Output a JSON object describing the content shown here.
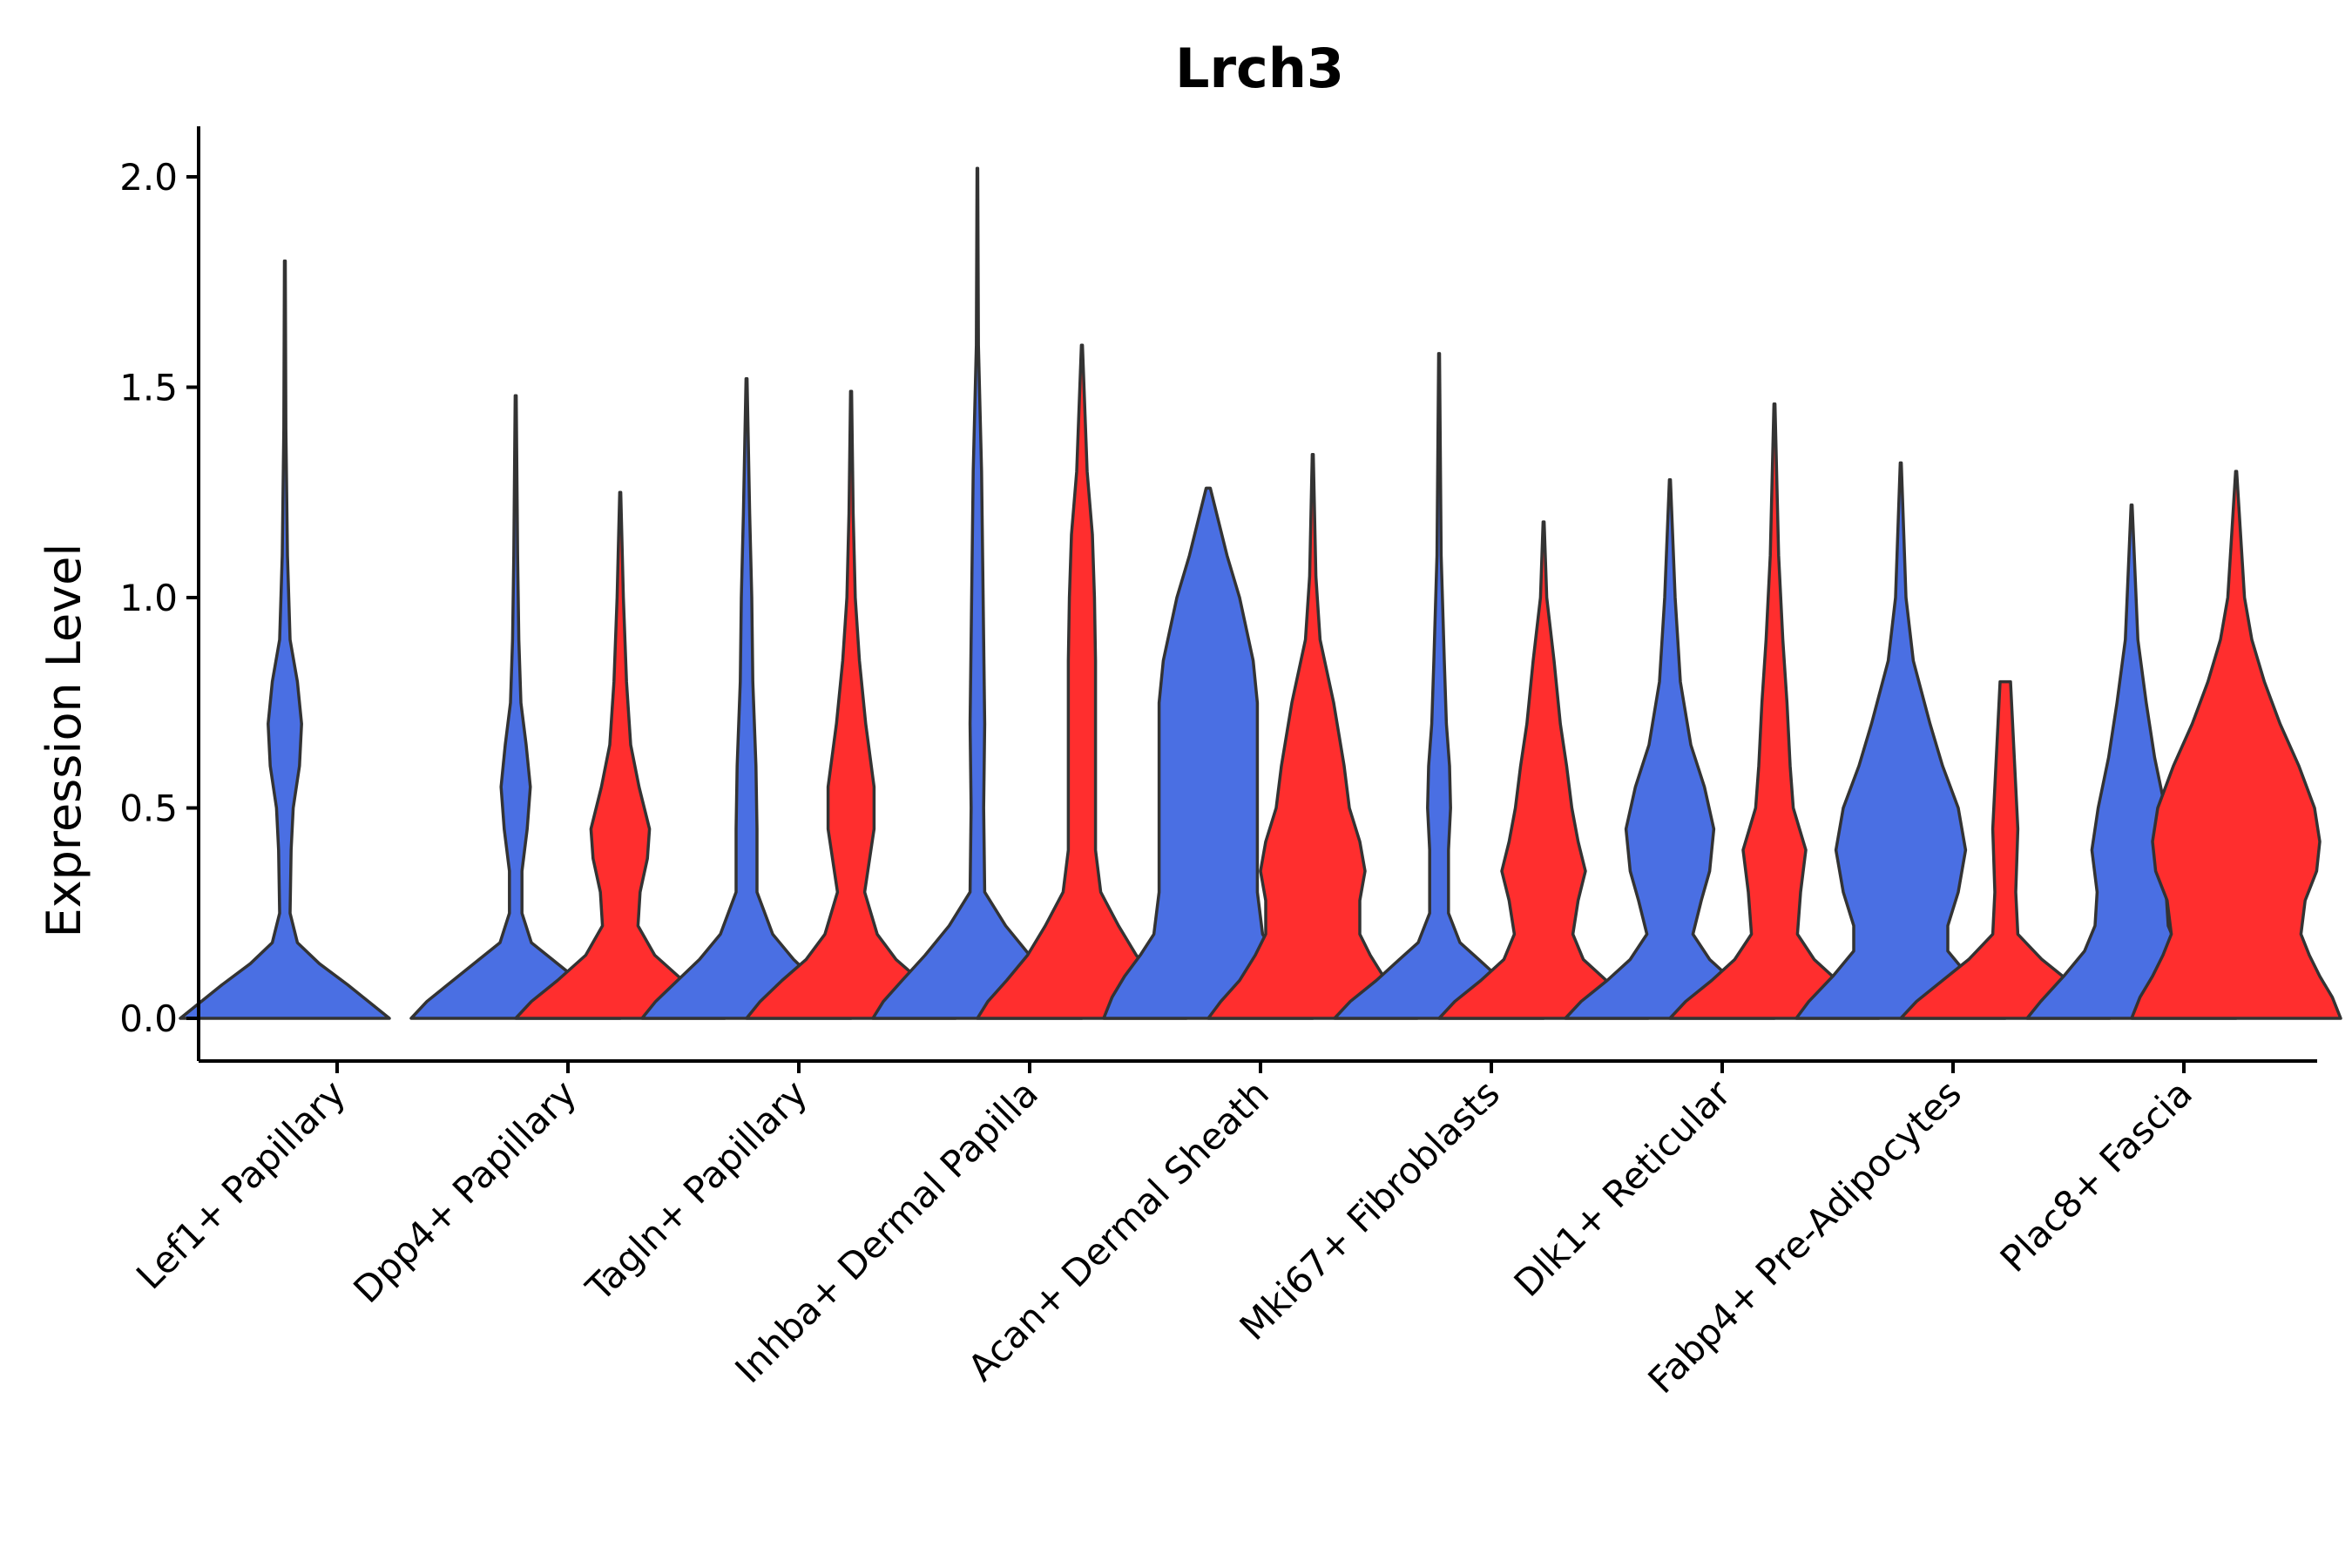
{
  "chart_data": {
    "type": "violin",
    "title": "Lrch3",
    "xlabel": "",
    "ylabel": "Expression Level",
    "ylim": [
      -0.1,
      2.12
    ],
    "yticks": [
      "0.0",
      "0.5",
      "1.0",
      "1.5",
      "2.0"
    ],
    "ytick_values": [
      0.0,
      0.5,
      1.0,
      1.5,
      2.0
    ],
    "grid": false,
    "legend": "none",
    "series_colors": {
      "group_a": "#4a6fe3",
      "group_b": "#ff2e2e"
    },
    "categories": [
      "Lef1+ Papillary",
      "Dpp4+ Papillary",
      "Tagln+ Papillary",
      "Inhba+ Dermal Papilla",
      "Acan+ Dermal Sheath",
      "Mki67+ Fibroblasts",
      "Dlk1+ Reticular",
      "Fabp4+ Pre-Adipocytes",
      "Plac8+ Fascia"
    ],
    "violins": [
      {
        "category": 0,
        "series": "group_a",
        "max": 1.8,
        "profile": [
          [
            0.0,
            1.0
          ],
          [
            0.03,
            0.85
          ],
          [
            0.08,
            0.6
          ],
          [
            0.13,
            0.33
          ],
          [
            0.18,
            0.12
          ],
          [
            0.25,
            0.05
          ],
          [
            0.4,
            0.06
          ],
          [
            0.5,
            0.08
          ],
          [
            0.6,
            0.14
          ],
          [
            0.7,
            0.16
          ],
          [
            0.8,
            0.12
          ],
          [
            0.9,
            0.05
          ],
          [
            1.1,
            0.025
          ],
          [
            1.4,
            0.01
          ],
          [
            1.8,
            0.004
          ]
        ]
      },
      {
        "category": 1,
        "series": "group_a",
        "max": 1.48,
        "profile": [
          [
            0.0,
            1.0
          ],
          [
            0.04,
            0.85
          ],
          [
            0.09,
            0.6
          ],
          [
            0.14,
            0.35
          ],
          [
            0.18,
            0.15
          ],
          [
            0.25,
            0.06
          ],
          [
            0.35,
            0.06
          ],
          [
            0.45,
            0.11
          ],
          [
            0.55,
            0.14
          ],
          [
            0.65,
            0.1
          ],
          [
            0.75,
            0.05
          ],
          [
            0.9,
            0.03
          ],
          [
            1.1,
            0.018
          ],
          [
            1.48,
            0.005
          ]
        ]
      },
      {
        "category": 1,
        "series": "group_b",
        "max": 1.25,
        "profile": [
          [
            0.0,
            1.0
          ],
          [
            0.04,
            0.85
          ],
          [
            0.09,
            0.6
          ],
          [
            0.15,
            0.33
          ],
          [
            0.22,
            0.17
          ],
          [
            0.3,
            0.19
          ],
          [
            0.38,
            0.26
          ],
          [
            0.45,
            0.28
          ],
          [
            0.55,
            0.18
          ],
          [
            0.65,
            0.1
          ],
          [
            0.8,
            0.06
          ],
          [
            1.0,
            0.03
          ],
          [
            1.25,
            0.005
          ]
        ]
      },
      {
        "category": 2,
        "series": "group_a",
        "max": 1.52,
        "profile": [
          [
            0.0,
            1.0
          ],
          [
            0.04,
            0.87
          ],
          [
            0.09,
            0.66
          ],
          [
            0.14,
            0.45
          ],
          [
            0.2,
            0.25
          ],
          [
            0.3,
            0.1
          ],
          [
            0.45,
            0.1
          ],
          [
            0.6,
            0.09
          ],
          [
            0.8,
            0.06
          ],
          [
            1.0,
            0.05
          ],
          [
            1.2,
            0.03
          ],
          [
            1.52,
            0.005
          ]
        ]
      },
      {
        "category": 2,
        "series": "group_b",
        "max": 1.49,
        "profile": [
          [
            0.0,
            1.0
          ],
          [
            0.04,
            0.87
          ],
          [
            0.09,
            0.66
          ],
          [
            0.14,
            0.43
          ],
          [
            0.2,
            0.25
          ],
          [
            0.3,
            0.13
          ],
          [
            0.45,
            0.22
          ],
          [
            0.55,
            0.22
          ],
          [
            0.7,
            0.14
          ],
          [
            0.85,
            0.08
          ],
          [
            1.0,
            0.04
          ],
          [
            1.2,
            0.02
          ],
          [
            1.49,
            0.005
          ]
        ]
      },
      {
        "category": 3,
        "series": "group_a",
        "max": 2.02,
        "profile": [
          [
            0.0,
            1.0
          ],
          [
            0.04,
            0.9
          ],
          [
            0.09,
            0.72
          ],
          [
            0.15,
            0.5
          ],
          [
            0.22,
            0.27
          ],
          [
            0.3,
            0.07
          ],
          [
            0.5,
            0.06
          ],
          [
            0.7,
            0.07
          ],
          [
            0.9,
            0.06
          ],
          [
            1.1,
            0.05
          ],
          [
            1.3,
            0.04
          ],
          [
            1.6,
            0.01
          ],
          [
            2.02,
            0.003
          ]
        ]
      },
      {
        "category": 3,
        "series": "group_b",
        "max": 1.6,
        "profile": [
          [
            0.0,
            1.0
          ],
          [
            0.04,
            0.9
          ],
          [
            0.09,
            0.72
          ],
          [
            0.15,
            0.52
          ],
          [
            0.22,
            0.35
          ],
          [
            0.3,
            0.18
          ],
          [
            0.4,
            0.13
          ],
          [
            0.55,
            0.13
          ],
          [
            0.7,
            0.13
          ],
          [
            0.85,
            0.13
          ],
          [
            1.0,
            0.12
          ],
          [
            1.15,
            0.1
          ],
          [
            1.3,
            0.05
          ],
          [
            1.6,
            0.005
          ]
        ]
      },
      {
        "category": 4,
        "series": "group_a",
        "max": 1.26,
        "profile": [
          [
            0.0,
            1.0
          ],
          [
            0.05,
            0.92
          ],
          [
            0.1,
            0.8
          ],
          [
            0.15,
            0.65
          ],
          [
            0.2,
            0.52
          ],
          [
            0.3,
            0.47
          ],
          [
            0.45,
            0.47
          ],
          [
            0.6,
            0.47
          ],
          [
            0.75,
            0.47
          ],
          [
            0.85,
            0.43
          ],
          [
            1.0,
            0.3
          ],
          [
            1.1,
            0.18
          ],
          [
            1.2,
            0.08
          ],
          [
            1.26,
            0.02
          ]
        ]
      },
      {
        "category": 4,
        "series": "group_b",
        "max": 1.34,
        "profile": [
          [
            0.0,
            1.0
          ],
          [
            0.04,
            0.88
          ],
          [
            0.09,
            0.7
          ],
          [
            0.15,
            0.55
          ],
          [
            0.2,
            0.45
          ],
          [
            0.28,
            0.45
          ],
          [
            0.35,
            0.5
          ],
          [
            0.42,
            0.45
          ],
          [
            0.5,
            0.35
          ],
          [
            0.6,
            0.3
          ],
          [
            0.75,
            0.2
          ],
          [
            0.9,
            0.07
          ],
          [
            1.05,
            0.03
          ],
          [
            1.34,
            0.005
          ]
        ]
      },
      {
        "category": 5,
        "series": "group_a",
        "max": 1.58,
        "profile": [
          [
            0.0,
            1.0
          ],
          [
            0.04,
            0.85
          ],
          [
            0.09,
            0.6
          ],
          [
            0.14,
            0.38
          ],
          [
            0.18,
            0.2
          ],
          [
            0.25,
            0.09
          ],
          [
            0.4,
            0.09
          ],
          [
            0.5,
            0.11
          ],
          [
            0.6,
            0.1
          ],
          [
            0.7,
            0.07
          ],
          [
            0.85,
            0.05
          ],
          [
            1.1,
            0.02
          ],
          [
            1.58,
            0.004
          ]
        ]
      },
      {
        "category": 5,
        "series": "group_b",
        "max": 1.18,
        "profile": [
          [
            0.0,
            1.0
          ],
          [
            0.04,
            0.85
          ],
          [
            0.09,
            0.6
          ],
          [
            0.14,
            0.38
          ],
          [
            0.2,
            0.28
          ],
          [
            0.28,
            0.33
          ],
          [
            0.35,
            0.4
          ],
          [
            0.42,
            0.33
          ],
          [
            0.5,
            0.27
          ],
          [
            0.6,
            0.22
          ],
          [
            0.7,
            0.16
          ],
          [
            0.85,
            0.1
          ],
          [
            1.0,
            0.03
          ],
          [
            1.18,
            0.005
          ]
        ]
      },
      {
        "category": 6,
        "series": "group_a",
        "max": 1.28,
        "profile": [
          [
            0.0,
            1.0
          ],
          [
            0.04,
            0.85
          ],
          [
            0.09,
            0.6
          ],
          [
            0.14,
            0.38
          ],
          [
            0.2,
            0.22
          ],
          [
            0.28,
            0.3
          ],
          [
            0.35,
            0.38
          ],
          [
            0.45,
            0.42
          ],
          [
            0.55,
            0.33
          ],
          [
            0.65,
            0.2
          ],
          [
            0.8,
            0.1
          ],
          [
            1.0,
            0.05
          ],
          [
            1.28,
            0.005
          ]
        ]
      },
      {
        "category": 6,
        "series": "group_b",
        "max": 1.46,
        "profile": [
          [
            0.0,
            1.0
          ],
          [
            0.04,
            0.85
          ],
          [
            0.09,
            0.6
          ],
          [
            0.14,
            0.38
          ],
          [
            0.2,
            0.22
          ],
          [
            0.3,
            0.25
          ],
          [
            0.4,
            0.3
          ],
          [
            0.5,
            0.18
          ],
          [
            0.6,
            0.15
          ],
          [
            0.75,
            0.12
          ],
          [
            0.9,
            0.08
          ],
          [
            1.1,
            0.04
          ],
          [
            1.46,
            0.005
          ]
        ]
      },
      {
        "category": 7,
        "series": "group_a",
        "max": 1.32,
        "profile": [
          [
            0.0,
            1.0
          ],
          [
            0.04,
            0.88
          ],
          [
            0.1,
            0.65
          ],
          [
            0.16,
            0.45
          ],
          [
            0.22,
            0.45
          ],
          [
            0.3,
            0.55
          ],
          [
            0.4,
            0.62
          ],
          [
            0.5,
            0.55
          ],
          [
            0.6,
            0.4
          ],
          [
            0.7,
            0.28
          ],
          [
            0.85,
            0.12
          ],
          [
            1.0,
            0.05
          ],
          [
            1.32,
            0.005
          ]
        ]
      },
      {
        "category": 7,
        "series": "group_b",
        "max": 0.8,
        "profile": [
          [
            0.0,
            1.0
          ],
          [
            0.04,
            0.85
          ],
          [
            0.09,
            0.6
          ],
          [
            0.14,
            0.35
          ],
          [
            0.2,
            0.12
          ],
          [
            0.3,
            0.1
          ],
          [
            0.45,
            0.12
          ],
          [
            0.6,
            0.09
          ],
          [
            0.7,
            0.07
          ],
          [
            0.8,
            0.05
          ]
        ]
      },
      {
        "category": 8,
        "series": "group_a",
        "max": 1.22,
        "profile": [
          [
            0.0,
            1.0
          ],
          [
            0.04,
            0.87
          ],
          [
            0.1,
            0.65
          ],
          [
            0.16,
            0.45
          ],
          [
            0.22,
            0.35
          ],
          [
            0.3,
            0.33
          ],
          [
            0.4,
            0.38
          ],
          [
            0.5,
            0.32
          ],
          [
            0.62,
            0.22
          ],
          [
            0.75,
            0.14
          ],
          [
            0.9,
            0.06
          ],
          [
            1.22,
            0.005
          ]
        ]
      },
      {
        "category": 8,
        "series": "group_b",
        "max": 1.3,
        "profile": [
          [
            0.0,
            1.0
          ],
          [
            0.05,
            0.92
          ],
          [
            0.1,
            0.8
          ],
          [
            0.15,
            0.7
          ],
          [
            0.2,
            0.62
          ],
          [
            0.28,
            0.66
          ],
          [
            0.35,
            0.77
          ],
          [
            0.42,
            0.8
          ],
          [
            0.5,
            0.75
          ],
          [
            0.6,
            0.6
          ],
          [
            0.7,
            0.42
          ],
          [
            0.8,
            0.27
          ],
          [
            0.9,
            0.15
          ],
          [
            1.0,
            0.08
          ],
          [
            1.3,
            0.005
          ]
        ]
      }
    ]
  }
}
